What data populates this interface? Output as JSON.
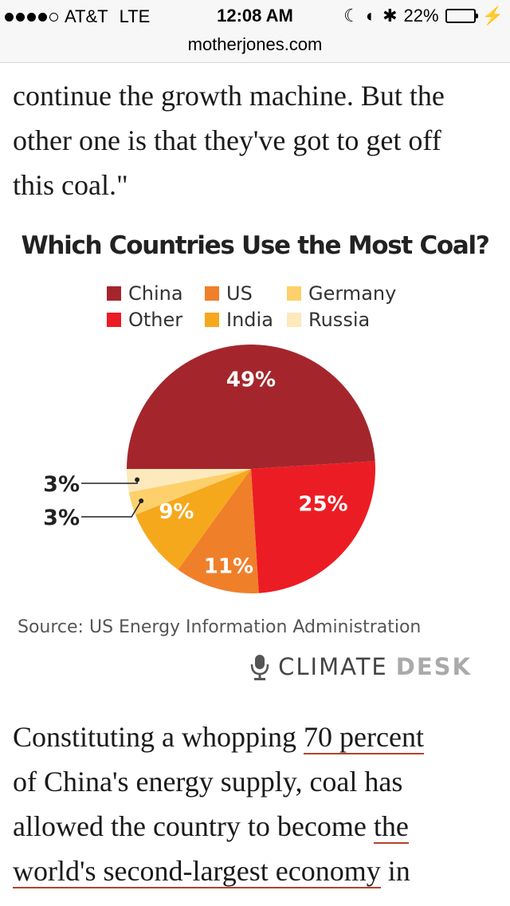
{
  "status": {
    "carrier": "AT&T",
    "network": "LTE",
    "time": "12:08 AM",
    "battery": "22%",
    "battery_level": 0.22
  },
  "browser": {
    "url": "motherjones.com"
  },
  "article": {
    "top_lines": [
      "continue the growth machine. But the",
      "other one is that they've got to get off",
      "this coal.\""
    ],
    "bottom": {
      "p1": "Constituting a whopping ",
      "link1": "70 percent",
      "p2": "of China's energy supply, coal has",
      "p3": "allowed the country to become ",
      "link2a": "the",
      "link2b": "world's second-largest economy",
      "p4": " in"
    }
  },
  "chart": {
    "source": "Source: US Energy Information Administration",
    "brand_a": "CLIMATE",
    "brand_b": "DESK",
    "colors": {
      "China": "#a4262c",
      "Other": "#ec1c24",
      "US": "#f07f2a",
      "India": "#f6a81c",
      "Germany": "#fdd06b",
      "Russia": "#fde9bc"
    }
  },
  "chart_data": {
    "type": "pie",
    "title": "Which Countries Use the Most Coal?",
    "legend": [
      "China",
      "US",
      "Germany",
      "Other",
      "India",
      "Russia"
    ],
    "slices": [
      {
        "name": "China",
        "value": 49,
        "label": "49%"
      },
      {
        "name": "Other",
        "value": 25,
        "label": "25%"
      },
      {
        "name": "US",
        "value": 11,
        "label": "11%"
      },
      {
        "name": "India",
        "value": 9,
        "label": "9%"
      },
      {
        "name": "Germany",
        "value": 3,
        "label": "3%"
      },
      {
        "name": "Russia",
        "value": 3,
        "label": "3%"
      }
    ]
  }
}
